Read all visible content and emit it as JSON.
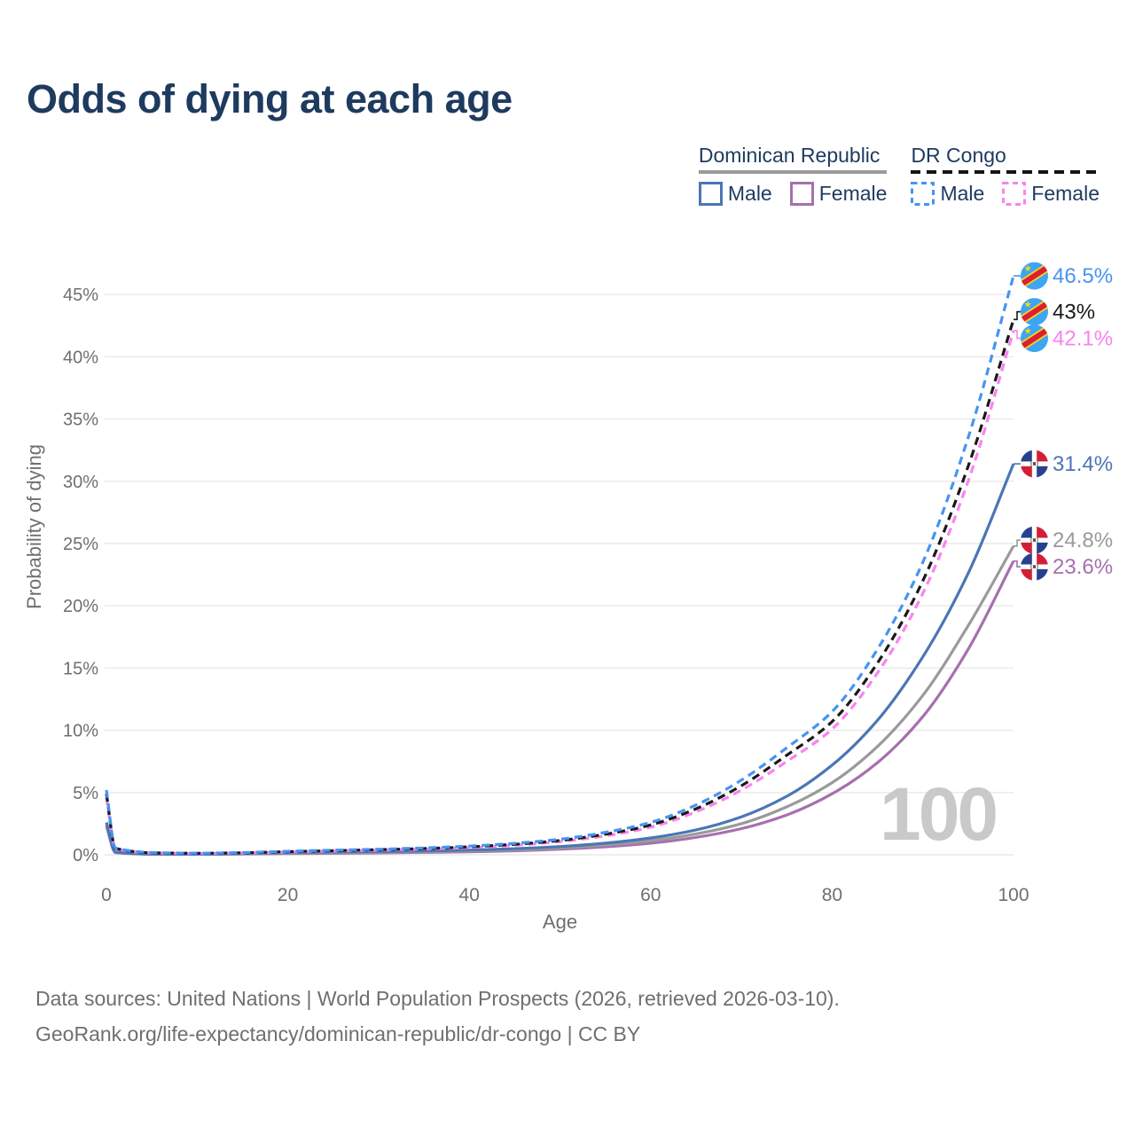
{
  "title": "Odds of dying at each age",
  "watermark": "100",
  "legend": {
    "groups": [
      {
        "label": "Dominican Republic",
        "line_style": "solid",
        "underline_color": "#9a9a9a",
        "items": [
          {
            "label": "Male",
            "color": "#4b76b5",
            "dashed": false
          },
          {
            "label": "Female",
            "color": "#a76fae",
            "dashed": false
          }
        ]
      },
      {
        "label": "DR Congo",
        "line_style": "dashed",
        "underline_color": "#141414",
        "items": [
          {
            "label": "Male",
            "color": "#4694f1",
            "dashed": true
          },
          {
            "label": "Female",
            "color": "#f983ef",
            "dashed": true
          }
        ]
      }
    ]
  },
  "footer": {
    "line1": "Data sources: United Nations | World Population Prospects (2026, retrieved 2026-03-10).",
    "line2": "GeoRank.org/life-expectancy/dominican-republic/dr-congo | CC BY"
  },
  "chart_data": {
    "type": "line",
    "title": "Odds of dying at each age",
    "xlabel": "Age",
    "ylabel": "Probability of dying",
    "xlim": [
      0,
      100
    ],
    "ylim_percent": [
      0,
      47
    ],
    "x_ticks": [
      0,
      20,
      40,
      60,
      80,
      100
    ],
    "y_ticks_percent": [
      0,
      5,
      10,
      15,
      20,
      25,
      30,
      35,
      40,
      45
    ],
    "y_tick_suffix": "%",
    "grid": "horizontal",
    "legend_position": "top-right",
    "ages": [
      0,
      1,
      5,
      10,
      15,
      20,
      25,
      30,
      35,
      40,
      45,
      50,
      55,
      60,
      65,
      70,
      75,
      80,
      85,
      90,
      95,
      100
    ],
    "series": [
      {
        "name": "DR Congo Male",
        "country": "DR Congo",
        "sex": "Male",
        "color": "#4694f1",
        "dashed": true,
        "flag": "cd",
        "end_label": "46.5%",
        "label_color": "#4694f1",
        "values_percent": [
          5.2,
          0.55,
          0.18,
          0.13,
          0.18,
          0.28,
          0.37,
          0.45,
          0.55,
          0.7,
          0.92,
          1.25,
          1.8,
          2.6,
          4.0,
          6.0,
          8.6,
          11.5,
          16.5,
          23.5,
          33.5,
          46.5
        ]
      },
      {
        "name": "DR Congo Both sexes",
        "country": "DR Congo",
        "sex": "Both sexes",
        "color": "#1a1a1a",
        "dashed": true,
        "flag": "cd",
        "end_label": "43%",
        "label_color": "#1a1a1a",
        "values_percent": [
          4.9,
          0.52,
          0.16,
          0.12,
          0.16,
          0.25,
          0.33,
          0.41,
          0.5,
          0.64,
          0.84,
          1.15,
          1.65,
          2.4,
          3.7,
          5.55,
          8.0,
          10.7,
          15.4,
          22.0,
          31.2,
          43.0
        ]
      },
      {
        "name": "DR Congo Female",
        "country": "DR Congo",
        "sex": "Female",
        "color": "#f983ef",
        "dashed": true,
        "flag": "cd",
        "end_label": "42.1%",
        "label_color": "#f983ef",
        "values_percent": [
          4.6,
          0.49,
          0.15,
          0.11,
          0.14,
          0.22,
          0.3,
          0.37,
          0.46,
          0.58,
          0.77,
          1.06,
          1.52,
          2.22,
          3.45,
          5.2,
          7.5,
          10.1,
          14.6,
          21.0,
          30.0,
          42.1
        ]
      },
      {
        "name": "Dominican Republic Male",
        "country": "Dominican Republic",
        "sex": "Male",
        "color": "#4b76b5",
        "dashed": false,
        "flag": "do",
        "end_label": "31.4%",
        "label_color": "#4b76b5",
        "values_percent": [
          2.6,
          0.22,
          0.06,
          0.05,
          0.1,
          0.18,
          0.23,
          0.26,
          0.31,
          0.38,
          0.49,
          0.66,
          0.93,
          1.35,
          2.0,
          3.05,
          4.7,
          7.2,
          10.8,
          15.9,
          22.6,
          31.4
        ]
      },
      {
        "name": "Dominican Republic Both sexes",
        "country": "Dominican Republic",
        "sex": "Both sexes",
        "color": "#9a9a9a",
        "dashed": false,
        "flag": "do",
        "end_label": "24.8%",
        "label_color": "#9a9a9a",
        "values_percent": [
          2.45,
          0.2,
          0.055,
          0.045,
          0.08,
          0.13,
          0.17,
          0.2,
          0.24,
          0.3,
          0.4,
          0.55,
          0.78,
          1.13,
          1.68,
          2.5,
          3.85,
          5.8,
          8.7,
          12.8,
          18.4,
          24.8
        ]
      },
      {
        "name": "Dominican Republic Female",
        "country": "Dominican Republic",
        "sex": "Female",
        "color": "#a76fae",
        "dashed": false,
        "flag": "do",
        "end_label": "23.6%",
        "label_color": "#a76fae",
        "values_percent": [
          2.3,
          0.18,
          0.05,
          0.04,
          0.06,
          0.09,
          0.12,
          0.15,
          0.19,
          0.24,
          0.32,
          0.45,
          0.64,
          0.93,
          1.4,
          2.1,
          3.2,
          4.9,
          7.4,
          11.1,
          16.5,
          23.6
        ]
      }
    ]
  }
}
